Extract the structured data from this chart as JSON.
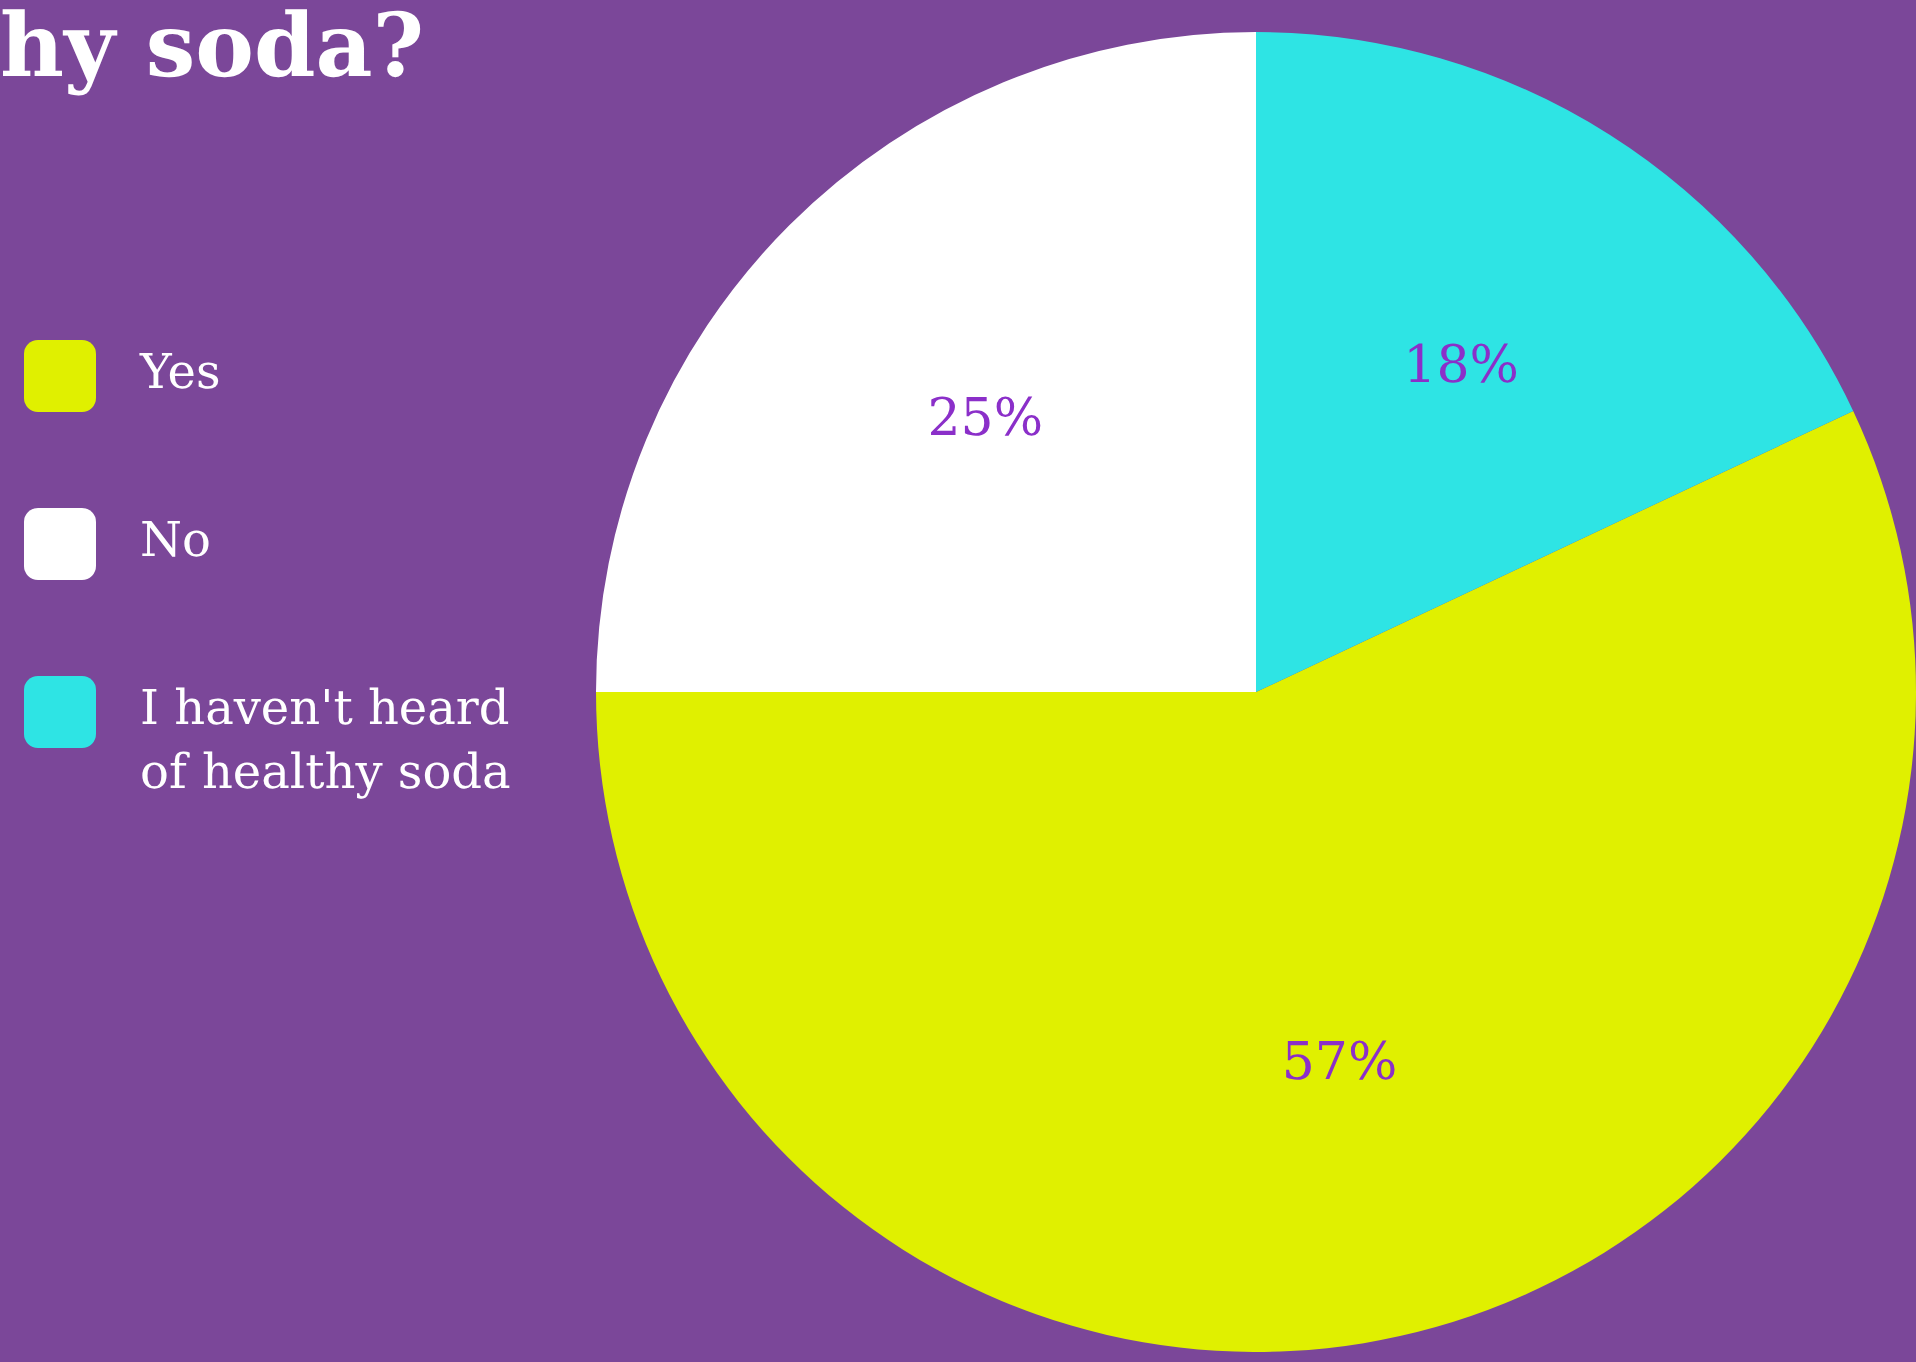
{
  "chart_data": {
    "type": "pie",
    "title": "hy soda?",
    "categories": [
      "Yes",
      "No",
      "I haven't heard of healthy soda"
    ],
    "values": [
      57,
      25,
      18
    ],
    "value_labels": [
      "57%",
      "25%",
      "18%"
    ],
    "colors": [
      "#e0f000",
      "#ffffff",
      "#2ee4e4"
    ],
    "legend": "left"
  }
}
